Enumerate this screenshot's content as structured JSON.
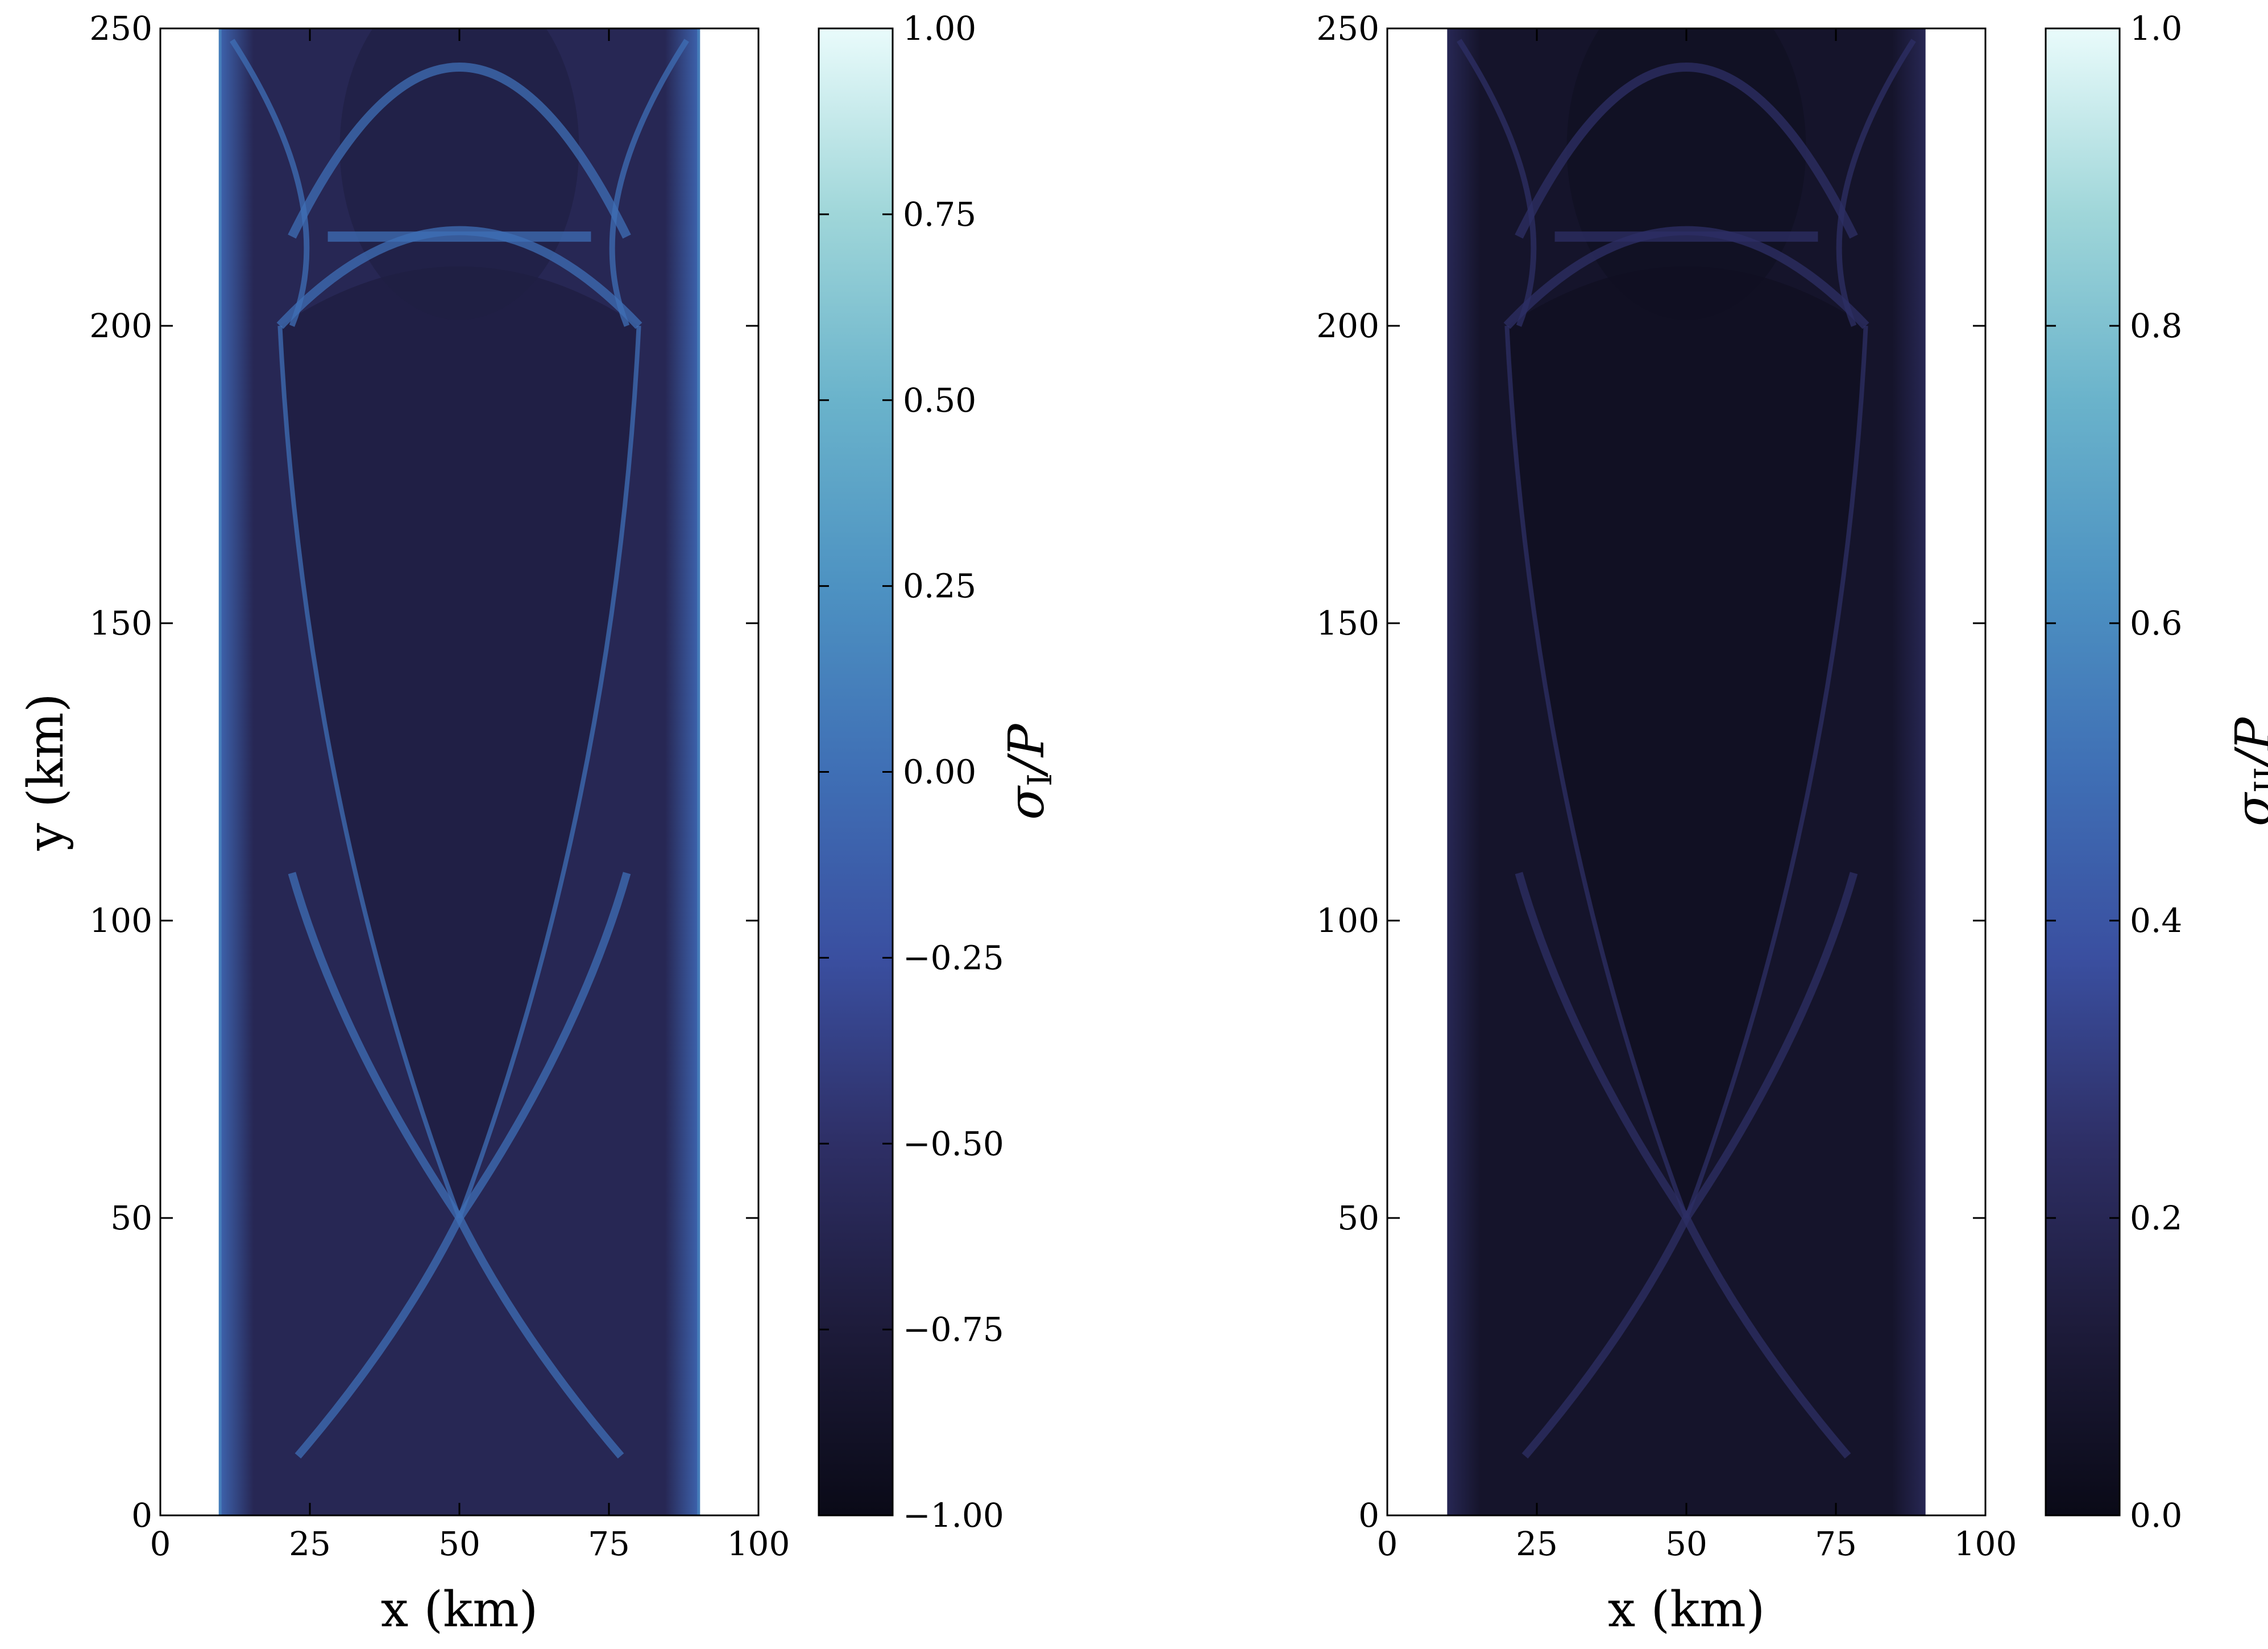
{
  "chart_data": [
    {
      "type": "heatmap",
      "field": "principal stress sigma_I normalized by P",
      "xlabel": "x (km)",
      "ylabel": "y (km)",
      "xlim": [
        0,
        100
      ],
      "ylim": [
        0,
        250
      ],
      "x_ticks": [
        "0",
        "25",
        "50",
        "75",
        "100"
      ],
      "y_ticks": [
        "0",
        "50",
        "100",
        "150",
        "200",
        "250"
      ],
      "domain_x": [
        10,
        90
      ],
      "domain_y": [
        0,
        250
      ],
      "colorbar": {
        "label_symbol": "σ",
        "label_sub": "I",
        "label_tail": "/P",
        "range": [
          -1.0,
          1.0
        ],
        "ticks": [
          "1.00",
          "0.75",
          "0.50",
          "0.25",
          "0.00",
          "−0.25",
          "−0.50",
          "−0.75",
          "−1.00"
        ]
      },
      "features": {
        "background_value": -0.6,
        "edge_value": -0.1,
        "cone_interior_value": -0.7,
        "crossing_point": [
          50,
          50
        ],
        "arch_y_top": 244,
        "arch_y_bottom": 215,
        "lower_arch_y": 200
      }
    },
    {
      "type": "heatmap",
      "field": "principal stress sigma_II normalized by P",
      "xlabel": "x (km)",
      "ylabel": "",
      "xlim": [
        0,
        100
      ],
      "ylim": [
        0,
        250
      ],
      "x_ticks": [
        "0",
        "25",
        "50",
        "75",
        "100"
      ],
      "y_ticks": [
        "0",
        "50",
        "100",
        "150",
        "200",
        "250"
      ],
      "domain_x": [
        10,
        90
      ],
      "domain_y": [
        0,
        250
      ],
      "colorbar": {
        "label_symbol": "σ",
        "label_sub": "II",
        "label_tail": "/P",
        "range": [
          0.0,
          1.0
        ],
        "ticks": [
          "1.0",
          "0.8",
          "0.6",
          "0.4",
          "0.2",
          "0.0"
        ]
      },
      "features": {
        "background_value": 0.07,
        "edge_value": 0.2,
        "cone_interior_value": 0.04,
        "crossing_point": [
          50,
          50
        ],
        "arch_y_top": 244,
        "arch_y_bottom": 215,
        "lower_arch_y": 200
      }
    }
  ],
  "colors": {
    "cmap_stops": [
      "#0a0a17",
      "#1d1b3a",
      "#2e2f66",
      "#3a4fa0",
      "#3f6fb5",
      "#4d92c2",
      "#6ab3cb",
      "#9fd6d9",
      "#e9fbfb"
    ]
  }
}
